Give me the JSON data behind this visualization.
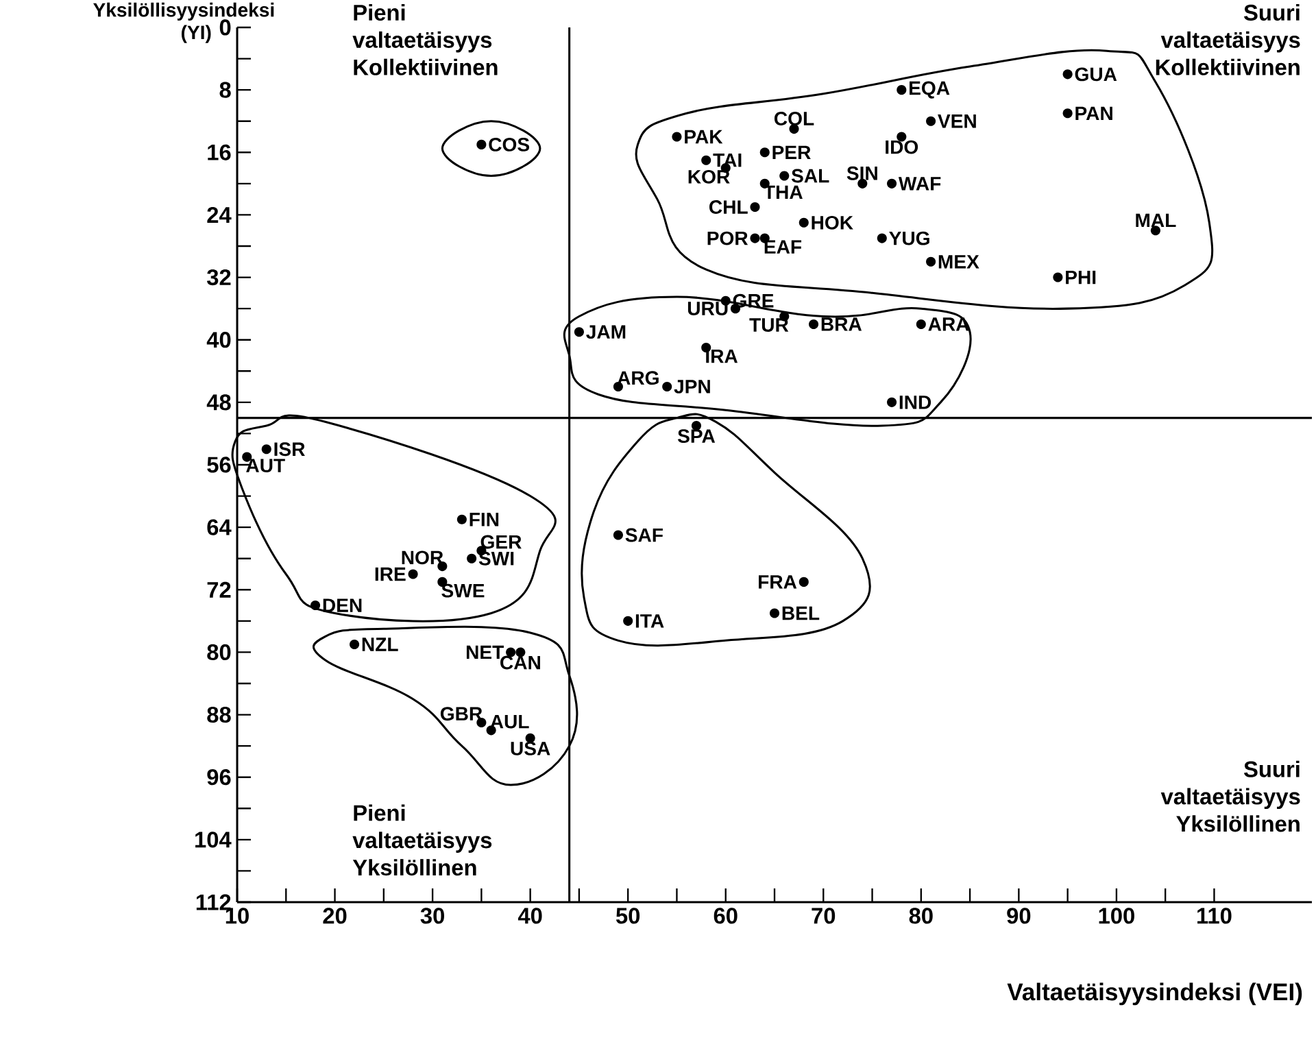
{
  "chart_data": {
    "type": "scatter",
    "xlabel": "Valtaetäisyysindeksi  (VEI)",
    "ylabel": "Yksilöllisyysindeksi (YI)",
    "x": [
      35,
      55,
      67,
      78,
      81,
      78,
      95,
      95,
      58,
      64,
      60,
      66,
      74,
      77,
      64,
      63,
      68,
      63,
      64,
      76,
      81,
      104,
      94,
      60,
      61,
      66,
      45,
      69,
      80,
      58,
      49,
      54,
      77,
      57,
      11,
      13,
      33,
      35,
      31,
      34,
      28,
      31,
      18,
      49,
      68,
      65,
      50,
      22,
      38,
      39,
      35,
      36,
      40
    ],
    "values": [
      15,
      14,
      13,
      8,
      12,
      14,
      6,
      11,
      17,
      16,
      18,
      19,
      20,
      20,
      20,
      23,
      25,
      27,
      27,
      27,
      30,
      26,
      32,
      35,
      36,
      37,
      39,
      38,
      38,
      41,
      46,
      46,
      48,
      51,
      55,
      54,
      63,
      67,
      69,
      68,
      70,
      71,
      74,
      65,
      71,
      75,
      76,
      79,
      80,
      80,
      89,
      90,
      91
    ],
    "color": "#000000",
    "marker": "circle",
    "xlim": [
      10,
      120
    ],
    "ylim": [
      112,
      0
    ],
    "xticks": [
      10,
      {
        "value": 15,
        "label": null
      },
      20,
      {
        "value": 25,
        "label": null
      },
      30,
      {
        "value": 35,
        "label": null
      },
      40,
      {
        "value": 45,
        "label": null
      },
      50,
      {
        "value": 55,
        "label": null
      },
      60,
      {
        "value": 65,
        "label": null
      },
      70,
      {
        "value": 75,
        "label": null
      },
      80,
      {
        "value": 85,
        "label": null
      },
      90,
      {
        "value": 95,
        "label": null
      },
      100,
      {
        "value": 105,
        "label": null
      },
      110
    ],
    "yticks": [
      0,
      {
        "value": 4,
        "label": null
      },
      8,
      {
        "value": 12,
        "label": null
      },
      16,
      {
        "value": 20,
        "label": null
      },
      24,
      {
        "value": 28,
        "label": null
      },
      32,
      {
        "value": 36,
        "label": null
      },
      40,
      {
        "value": 44,
        "label": null
      },
      48,
      {
        "value": 52,
        "label": null
      },
      56,
      {
        "value": 60,
        "label": null
      },
      64,
      {
        "value": 68,
        "label": null
      },
      72,
      {
        "value": 76,
        "label": null
      },
      80,
      {
        "value": 84,
        "label": null
      },
      88,
      {
        "value": 92,
        "label": null
      },
      96,
      {
        "value": 100,
        "label": null
      },
      104,
      {
        "value": 108,
        "label": null
      },
      112
    ],
    "ref_lines": [
      {
        "axis": "x",
        "value": 44
      },
      {
        "axis": "y",
        "value": 50
      }
    ],
    "annotations": [
      "Pieni valtaetäisyys Kollektiivinen",
      "Suuri valtaetäisyys Kollektiivinen",
      "Pieni valtaetäisyys Yksilöllinen",
      "Suuri valtaetäisyys Yksilöllinen",
      {
        "text": "COS",
        "x": 35,
        "y": 15
      },
      {
        "text": "PAK",
        "x": 55,
        "y": 14
      },
      {
        "text": "COL",
        "x": 67,
        "y": 13
      },
      {
        "text": "EQA",
        "x": 78,
        "y": 8
      },
      {
        "text": "VEN",
        "x": 81,
        "y": 12
      },
      {
        "text": "IDO",
        "x": 78,
        "y": 14
      },
      {
        "text": "GUA",
        "x": 95,
        "y": 6
      },
      {
        "text": "PAN",
        "x": 95,
        "y": 11
      },
      {
        "text": "TAI",
        "x": 58,
        "y": 17
      },
      {
        "text": "PER",
        "x": 64,
        "y": 16
      },
      {
        "text": "KOR",
        "x": 60,
        "y": 18
      },
      {
        "text": "SAL",
        "x": 66,
        "y": 19
      },
      {
        "text": "SIN",
        "x": 74,
        "y": 20
      },
      {
        "text": "WAF",
        "x": 77,
        "y": 20
      },
      {
        "text": "THA",
        "x": 64,
        "y": 20
      },
      {
        "text": "CHL",
        "x": 63,
        "y": 23
      },
      {
        "text": "HOK",
        "x": 68,
        "y": 25
      },
      {
        "text": "POR",
        "x": 63,
        "y": 27
      },
      {
        "text": "EAF",
        "x": 64,
        "y": 27
      },
      {
        "text": "YUG",
        "x": 76,
        "y": 27
      },
      {
        "text": "MEX",
        "x": 81,
        "y": 30
      },
      {
        "text": "MAL",
        "x": 104,
        "y": 26
      },
      {
        "text": "PHI",
        "x": 94,
        "y": 32
      },
      {
        "text": "GRE",
        "x": 60,
        "y": 35
      },
      {
        "text": "URU",
        "x": 61,
        "y": 36
      },
      {
        "text": "TUR",
        "x": 66,
        "y": 37
      },
      {
        "text": "JAM",
        "x": 45,
        "y": 39
      },
      {
        "text": "BRA",
        "x": 69,
        "y": 38
      },
      {
        "text": "ARA",
        "x": 80,
        "y": 38
      },
      {
        "text": "IRA",
        "x": 58,
        "y": 41
      },
      {
        "text": "ARG",
        "x": 49,
        "y": 46
      },
      {
        "text": "JPN",
        "x": 54,
        "y": 46
      },
      {
        "text": "IND",
        "x": 77,
        "y": 48
      },
      {
        "text": "SPA",
        "x": 57,
        "y": 51
      },
      {
        "text": "AUT",
        "x": 11,
        "y": 55
      },
      {
        "text": "ISR",
        "x": 13,
        "y": 54
      },
      {
        "text": "FIN",
        "x": 33,
        "y": 63
      },
      {
        "text": "GER",
        "x": 35,
        "y": 67
      },
      {
        "text": "NOR",
        "x": 31,
        "y": 69
      },
      {
        "text": "SWI",
        "x": 34,
        "y": 68
      },
      {
        "text": "IRE",
        "x": 28,
        "y": 70
      },
      {
        "text": "SWE",
        "x": 31,
        "y": 71
      },
      {
        "text": "DEN",
        "x": 18,
        "y": 74
      },
      {
        "text": "SAF",
        "x": 49,
        "y": 65
      },
      {
        "text": "FRA",
        "x": 68,
        "y": 71
      },
      {
        "text": "BEL",
        "x": 65,
        "y": 75
      },
      {
        "text": "ITA",
        "x": 50,
        "y": 76
      },
      {
        "text": "NZL",
        "x": 22,
        "y": 79
      },
      {
        "text": "NET",
        "x": 38,
        "y": 80
      },
      {
        "text": "CAN",
        "x": 39,
        "y": 80
      },
      {
        "text": "GBR",
        "x": 35,
        "y": 89
      },
      {
        "text": "AUL",
        "x": 36,
        "y": 90
      },
      {
        "text": "USA",
        "x": 40,
        "y": 91
      }
    ]
  }
}
